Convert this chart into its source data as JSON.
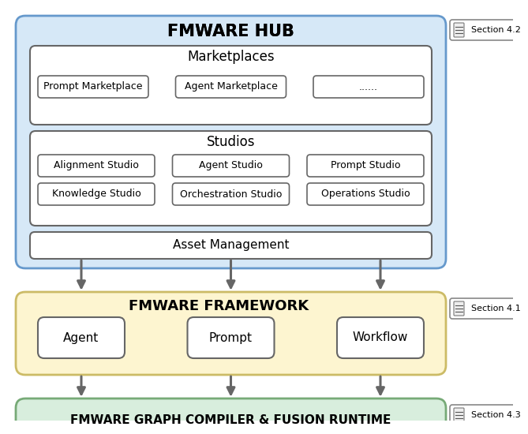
{
  "bg_color": "#ffffff",
  "hub_bg": "#d6e8f7",
  "hub_border": "#6699cc",
  "framework_bg": "#fdf5d0",
  "framework_border": "#ccbb66",
  "compiler_bg": "#d8eedd",
  "compiler_border": "#77aa77",
  "white_box_bg": "#ffffff",
  "white_box_border": "#666666",
  "arrow_color": "#666666",
  "section_bg": "#ffffff",
  "section_border": "#888888",
  "text_color": "#000000",
  "hub_title": "FMWARE HUB",
  "marketplaces_title": "Marketplaces",
  "marketplaces_items": [
    "Prompt Marketplace",
    "Agent Marketplace",
    "......"
  ],
  "studios_title": "Studios",
  "studios_row1": [
    "Alignment Studio",
    "Agent Studio",
    "Prompt Studio"
  ],
  "studios_row2": [
    "Knowledge Studio",
    "Orchestration Studio",
    "Operations Studio"
  ],
  "asset_title": "Asset Management",
  "framework_title": "FMWARE FRAMEWORK",
  "framework_items": [
    "Agent",
    "Prompt",
    "Workflow"
  ],
  "compiler_title": "FMWARE GRAPH COMPILER & FUSION RUNTIME",
  "section_labels": [
    "Section 4.2",
    "Section 4.1",
    "Section 4.3"
  ]
}
